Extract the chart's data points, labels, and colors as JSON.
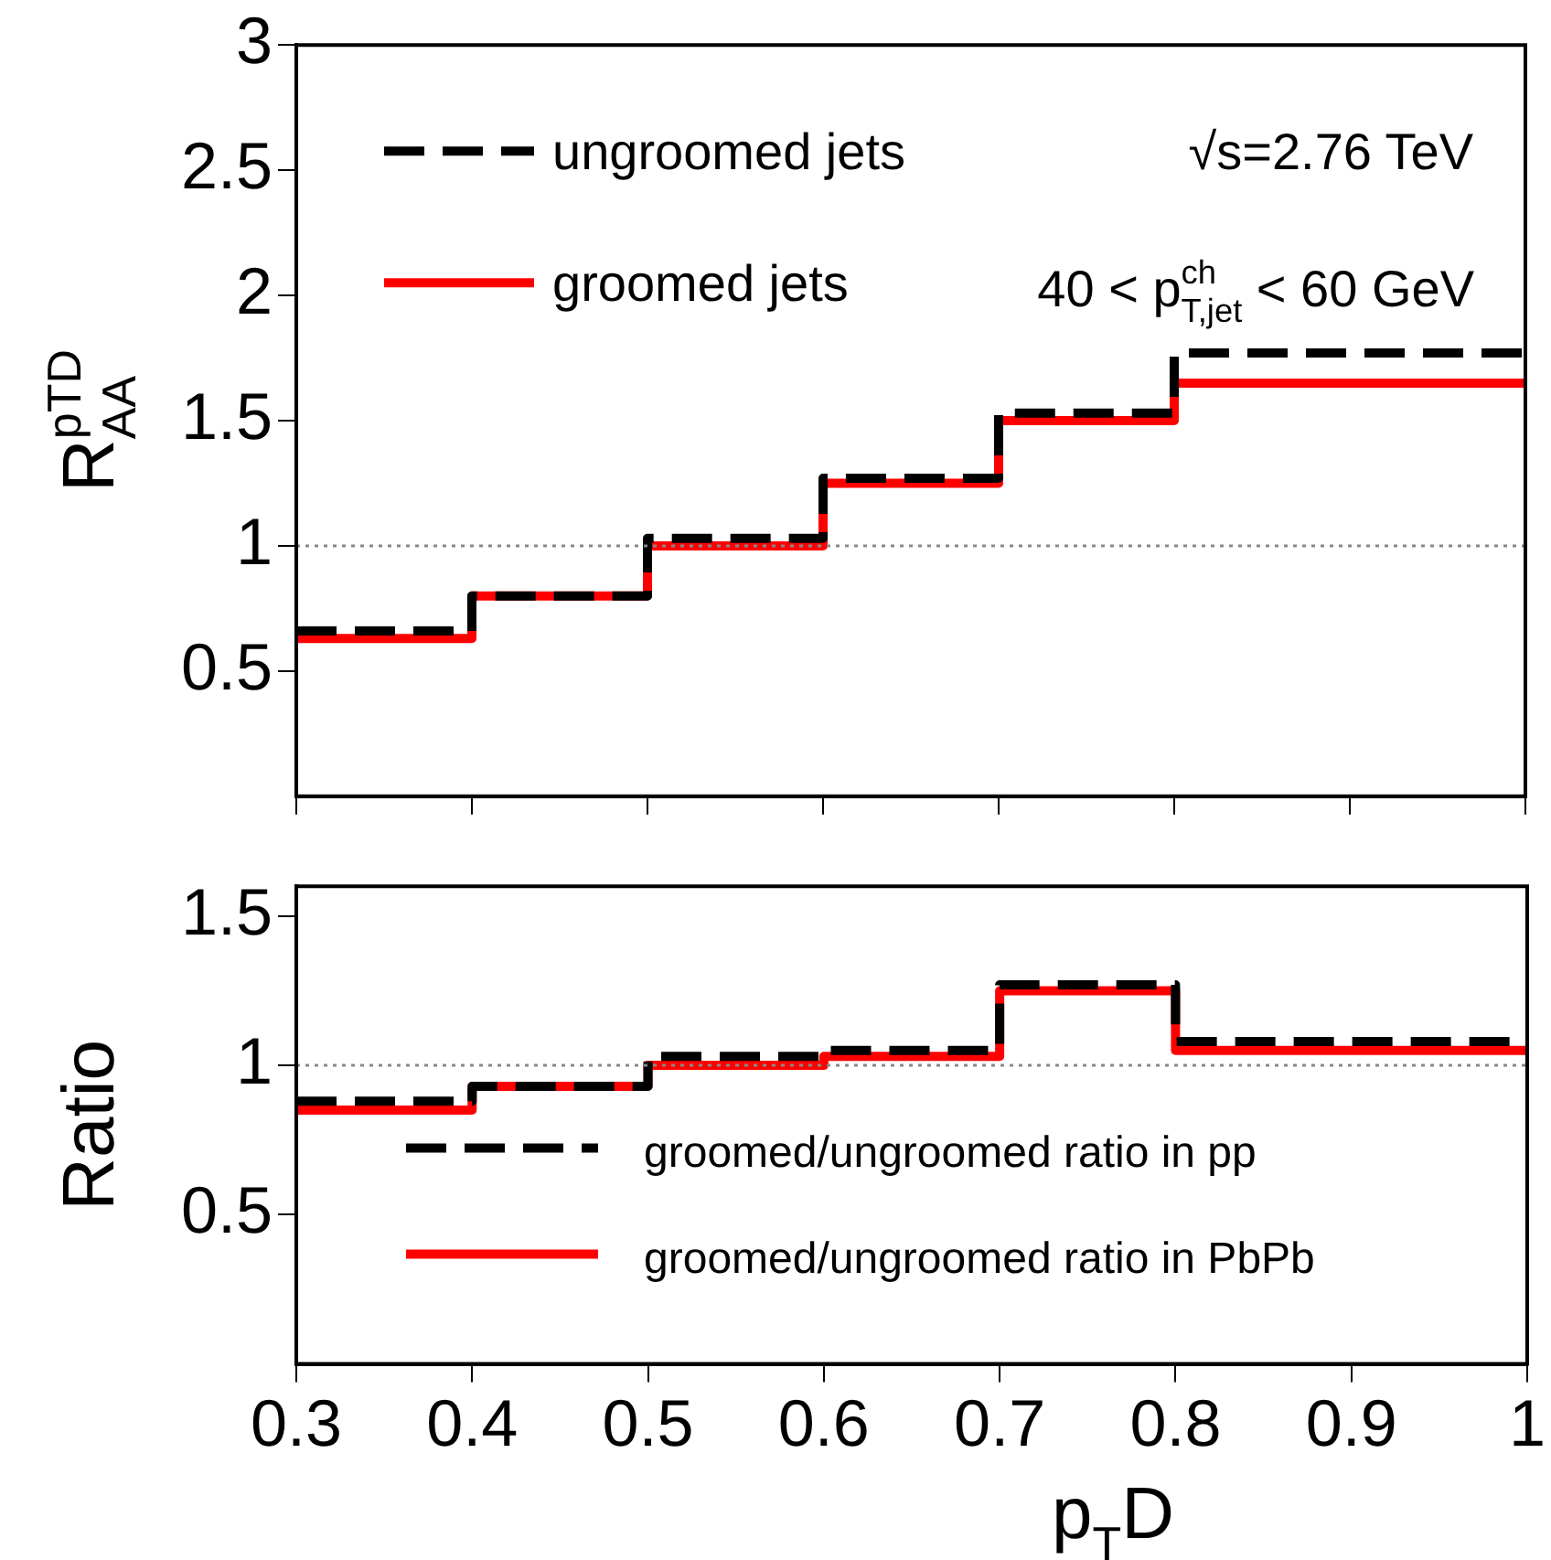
{
  "chart_data": [
    {
      "type": "histogram",
      "ylabel": "R$_{AA}$$^{pTD}$",
      "bins": [
        0.3,
        0.4,
        0.5,
        0.6,
        0.7,
        0.8,
        1.0
      ],
      "series": [
        {
          "name": "ungroomed jets",
          "color": "#000000",
          "line_style": "dashed",
          "values": [
            0.66,
            0.8,
            1.03,
            1.27,
            1.53,
            1.77
          ]
        },
        {
          "name": "groomed jets",
          "color": "#ff0000",
          "line_style": "solid",
          "values": [
            0.63,
            0.8,
            1.0,
            1.25,
            1.5,
            1.65
          ]
        }
      ],
      "xlim": [
        0.3,
        1.0
      ],
      "xticks": [
        0.3,
        0.4,
        0.5,
        0.6,
        0.7,
        0.8,
        0.9,
        1.0
      ],
      "ylim": [
        0,
        3
      ],
      "yticks": [
        0.5,
        1,
        1.5,
        2,
        2.5,
        3
      ],
      "tick_labels": "y",
      "legend": "top left",
      "grid": false,
      "ref_lines": [
        {
          "axis": "y",
          "value": 1,
          "color": "#888888",
          "line_style": "dotted"
        }
      ],
      "annotations": [
        "√s=2.76 TeV",
        "40 < p$^{ch}$$_{T,jet}$ < 60 GeV"
      ]
    },
    {
      "type": "histogram",
      "xlabel": "p$_{T}$D",
      "ylabel": "Ratio",
      "bins": [
        0.3,
        0.4,
        0.5,
        0.6,
        0.7,
        0.8,
        1.0
      ],
      "series": [
        {
          "name": "groomed/ungroomed ratio in pp",
          "color": "#000000",
          "line_style": "dashed",
          "values": [
            0.88,
            0.93,
            1.03,
            1.05,
            1.27,
            1.08
          ]
        },
        {
          "name": "groomed/ungroomed ratio in PbPb",
          "color": "#ff0000",
          "line_style": "solid",
          "values": [
            0.85,
            0.93,
            1.0,
            1.03,
            1.25,
            1.05
          ]
        }
      ],
      "xlim": [
        0.3,
        1.0
      ],
      "xticks": [
        0.3,
        0.4,
        0.5,
        0.6,
        0.7,
        0.8,
        0.9,
        1
      ],
      "ylim": [
        0,
        1.6
      ],
      "yticks": [
        0.5,
        1,
        1.5
      ],
      "legend": "bottom left",
      "grid": false,
      "ref_lines": [
        {
          "axis": "y",
          "value": 1,
          "color": "#888888",
          "line_style": "dotted"
        }
      ]
    }
  ]
}
